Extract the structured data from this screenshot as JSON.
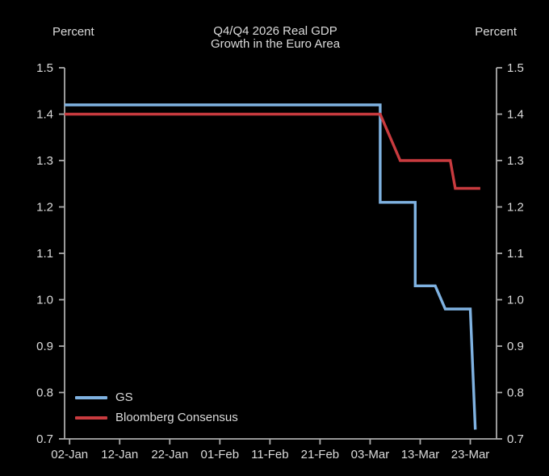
{
  "chart_data": {
    "type": "line",
    "title": "Q4/Q4 2026 Real GDP Growth in the Euro Area",
    "title_lines": [
      "Q4/Q4 2026 Real GDP",
      "Growth in the Euro Area"
    ],
    "ylabel_left": "Percent",
    "ylabel_right": "Percent",
    "ylim": [
      0.7,
      1.5
    ],
    "yticks": [
      "0.7",
      "0.8",
      "0.9",
      "1.0",
      "1.1",
      "1.2",
      "1.3",
      "1.4",
      "1.5"
    ],
    "xticks": [
      "02-Jan",
      "12-Jan",
      "22-Jan",
      "01-Feb",
      "11-Feb",
      "21-Feb",
      "03-Mar",
      "13-Mar",
      "23-Mar"
    ],
    "grid": "off",
    "legend_position": "bottom-left",
    "background_color": "#000000",
    "axis_color": "#ababab",
    "text_color": "#dbdbdb",
    "series": [
      {
        "name": "GS",
        "color": "#7fb2e1",
        "points": [
          [
            "01-Jan",
            1.42
          ],
          [
            "05-Mar",
            1.42
          ],
          [
            "05-Mar",
            1.21
          ],
          [
            "12-Mar",
            1.21
          ],
          [
            "12-Mar",
            1.03
          ],
          [
            "16-Mar",
            1.03
          ],
          [
            "18-Mar",
            0.98
          ],
          [
            "23-Mar",
            0.98
          ],
          [
            "24-Mar",
            0.72
          ]
        ]
      },
      {
        "name": "Bloomberg Consensus",
        "color": "#c93b3f",
        "points": [
          [
            "01-Jan",
            1.4
          ],
          [
            "05-Mar",
            1.4
          ],
          [
            "09-Mar",
            1.3
          ],
          [
            "19-Mar",
            1.3
          ],
          [
            "20-Mar",
            1.24
          ],
          [
            "25-Mar",
            1.24
          ]
        ]
      }
    ]
  }
}
